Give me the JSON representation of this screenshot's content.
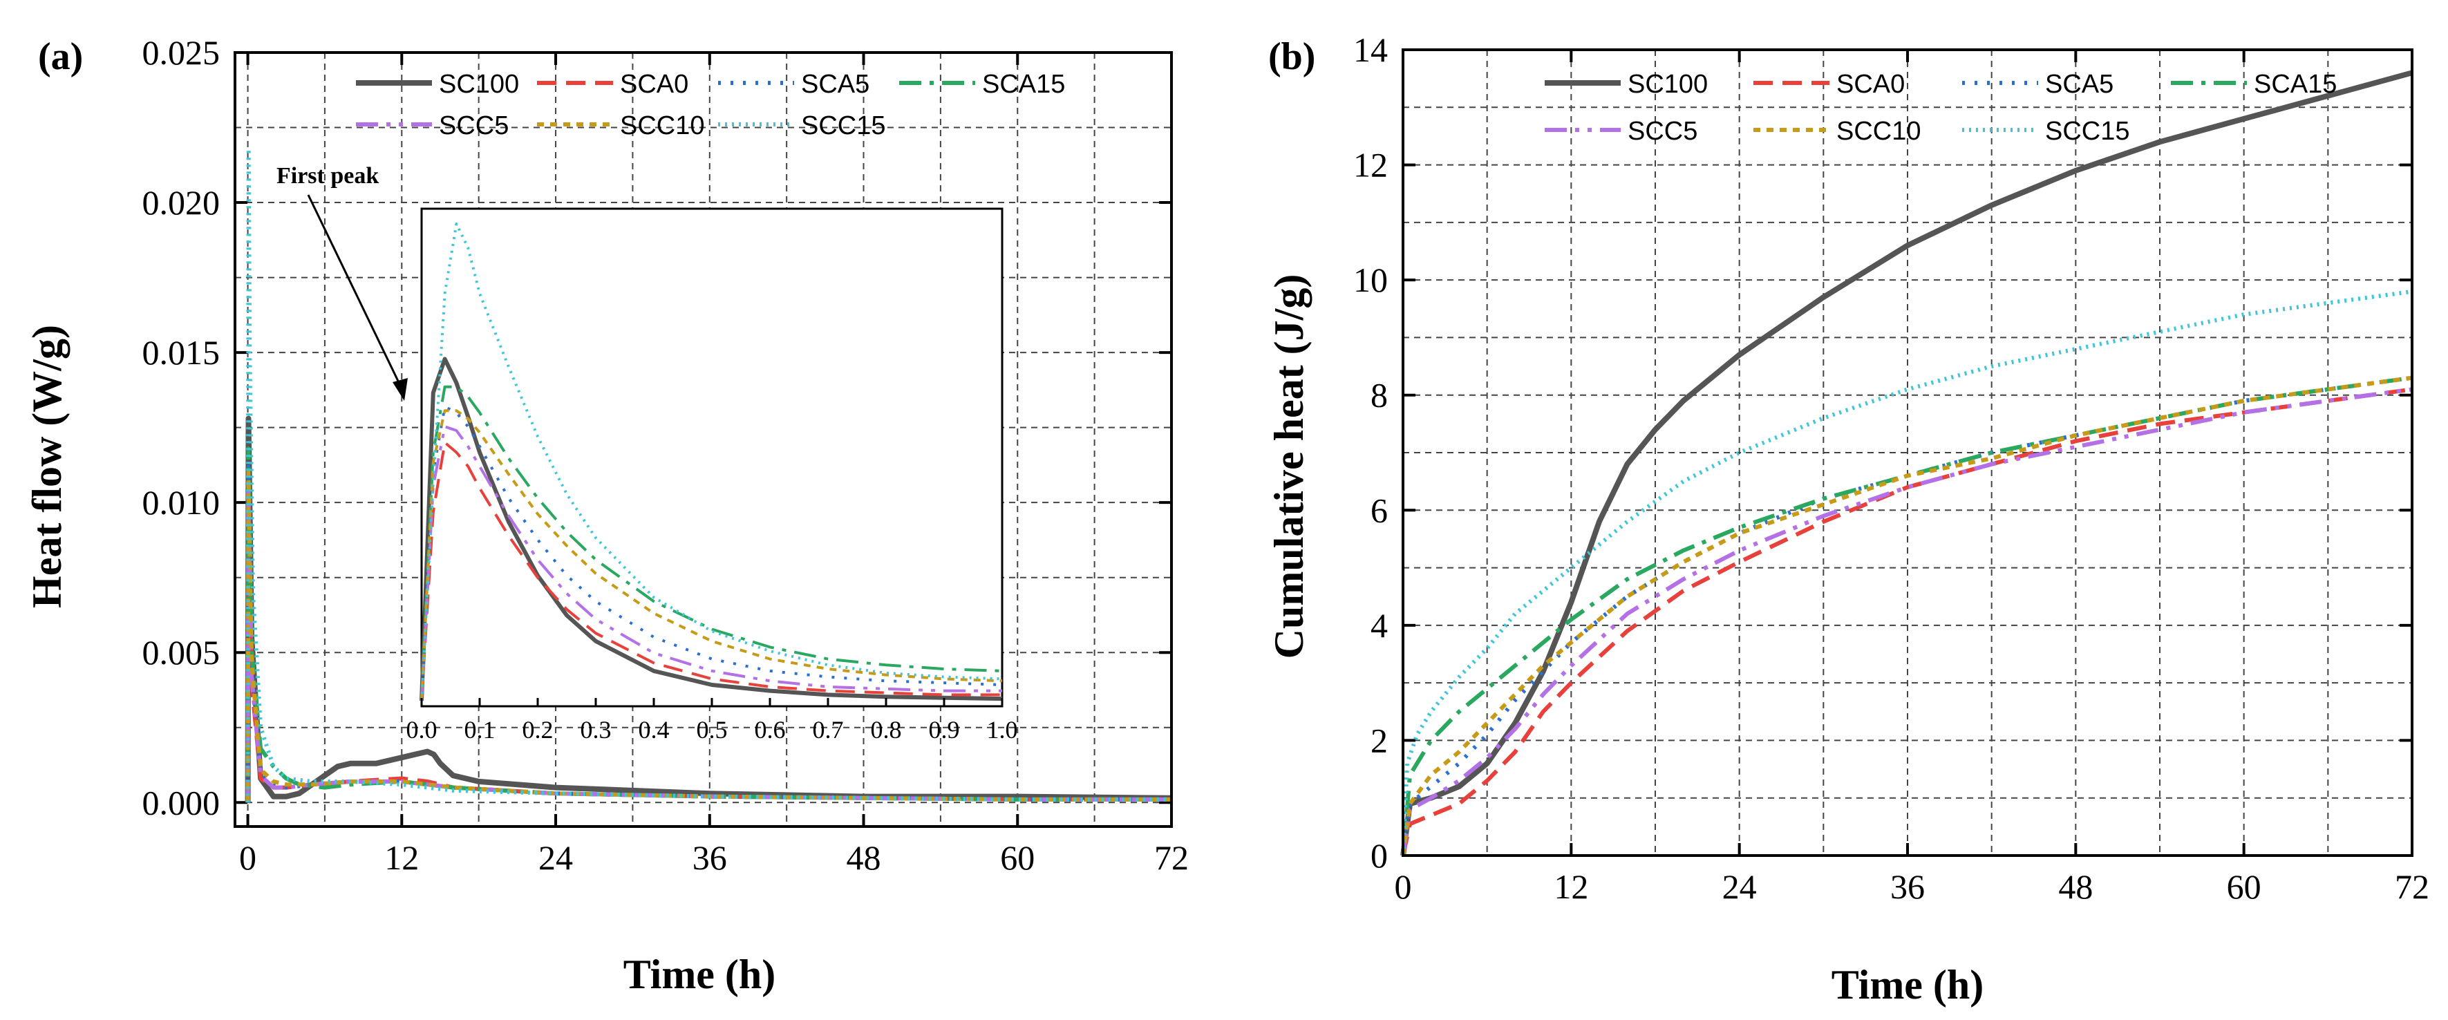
{
  "chart_data": [
    {
      "panel": "(a)",
      "type": "line",
      "xlabel": "Time (h)",
      "ylabel": "Heat flow (W/g)",
      "xlim": [
        -1,
        72
      ],
      "ylim": [
        -0.0008,
        0.025
      ],
      "xticks": [
        0,
        12,
        24,
        36,
        48,
        60,
        72
      ],
      "xtick_labels": [
        "0",
        "12",
        "24",
        "36",
        "48",
        "60",
        "72"
      ],
      "yticks": [
        0,
        0.005,
        0.01,
        0.015,
        0.02,
        0.025
      ],
      "ytick_labels": [
        "0.000",
        "0.005",
        "0.010",
        "0.015",
        "0.020",
        "0.025"
      ],
      "grid": true,
      "legend_position": "top",
      "annotation": "First peak",
      "series": [
        {
          "name": "SC100",
          "color": "#555555",
          "dash": "solid",
          "x": [
            0,
            0.05,
            0.3,
            1,
            2,
            3,
            4,
            5,
            6,
            7,
            8,
            10,
            12,
            13,
            14,
            14.5,
            15,
            16,
            18,
            24,
            36,
            48,
            60,
            72
          ],
          "y": [
            0.0,
            0.0128,
            0.0055,
            0.0008,
            0.0002,
            0.0002,
            0.0003,
            0.0006,
            0.0009,
            0.0012,
            0.0013,
            0.0013,
            0.0015,
            0.0016,
            0.0017,
            0.0016,
            0.0013,
            0.0009,
            0.0007,
            0.0005,
            0.0003,
            0.0002,
            0.0002,
            0.00015
          ]
        },
        {
          "name": "SCA0",
          "color": "#e8413c",
          "dash": "28 14",
          "x": [
            0,
            0.04,
            0.3,
            1,
            2,
            3,
            5,
            8,
            12,
            14,
            16,
            24,
            36,
            48,
            60,
            72
          ],
          "y": [
            0.0,
            0.0103,
            0.004,
            0.0008,
            0.0005,
            0.0005,
            0.0006,
            0.0007,
            0.0008,
            0.0007,
            0.0005,
            0.0003,
            0.0002,
            0.00015,
            0.0001,
            0.0001
          ]
        },
        {
          "name": "SCA5",
          "color": "#2a6fd1",
          "dash": "4 14",
          "x": [
            0,
            0.05,
            0.3,
            1,
            2,
            3,
            5,
            8,
            12,
            14,
            16,
            24,
            36,
            48,
            60,
            72
          ],
          "y": [
            0.0,
            0.0112,
            0.0045,
            0.001,
            0.0006,
            0.0005,
            0.0006,
            0.0007,
            0.0007,
            0.0006,
            0.0005,
            0.0003,
            0.0002,
            0.00015,
            0.0001,
            0.0001
          ]
        },
        {
          "name": "SCA15",
          "color": "#2aa860",
          "dash": "32 12 6 12",
          "x": [
            0,
            0.05,
            0.3,
            1,
            2,
            3,
            4,
            6,
            8,
            12,
            14,
            16,
            24,
            36,
            48,
            60,
            72
          ],
          "y": [
            0.0,
            0.0118,
            0.005,
            0.0018,
            0.0012,
            0.0008,
            0.0006,
            0.0005,
            0.0006,
            0.0007,
            0.0006,
            0.0005,
            0.0003,
            0.0002,
            0.00015,
            0.0001,
            0.0001
          ]
        },
        {
          "name": "SCC5",
          "color": "#b470e6",
          "dash": "32 12 6 12 6 12",
          "x": [
            0,
            0.04,
            0.3,
            1,
            2,
            3,
            5,
            8,
            12,
            14,
            16,
            24,
            36,
            48,
            60,
            72
          ],
          "y": [
            0.0,
            0.0105,
            0.0042,
            0.0009,
            0.0005,
            0.0005,
            0.0006,
            0.0007,
            0.0007,
            0.0006,
            0.0005,
            0.0003,
            0.0002,
            0.00015,
            0.0001,
            0.0001
          ]
        },
        {
          "name": "SCC10",
          "color": "#c79a17",
          "dash": "10 9",
          "x": [
            0,
            0.05,
            0.3,
            1,
            2,
            3,
            5,
            8,
            12,
            14,
            16,
            24,
            36,
            48,
            60,
            72
          ],
          "y": [
            0.0,
            0.011,
            0.0047,
            0.0011,
            0.0007,
            0.0006,
            0.0006,
            0.0007,
            0.0007,
            0.0006,
            0.0005,
            0.0003,
            0.0002,
            0.00015,
            0.0001,
            0.0001
          ]
        },
        {
          "name": "SCC15",
          "color": "#3fc6d6",
          "dash": "3 7",
          "x": [
            0,
            0.06,
            0.15,
            0.4,
            1,
            2,
            3,
            5,
            8,
            12,
            14,
            16,
            24,
            36,
            48,
            60,
            72
          ],
          "y": [
            0.0,
            0.0218,
            0.015,
            0.007,
            0.0025,
            0.0012,
            0.0008,
            0.0007,
            0.0007,
            0.0006,
            0.0005,
            0.0004,
            0.0003,
            0.0002,
            0.00015,
            0.0001,
            0.0001
          ]
        }
      ],
      "inset": {
        "xlim": [
          0,
          1
        ],
        "xticks": [
          0,
          0.1,
          0.2,
          0.3,
          0.4,
          0.5,
          0.6,
          0.7,
          0.8,
          0.9,
          1.0
        ],
        "xtick_labels": [
          "0.0",
          "0.1",
          "0.2",
          "0.3",
          "0.4",
          "0.5",
          "0.6",
          "0.7",
          "0.8",
          "0.9",
          "1.0"
        ],
        "ylim": [
          0,
          0.024
        ],
        "x": [
          0,
          0.02,
          0.04,
          0.06,
          0.08,
          0.1,
          0.15,
          0.2,
          0.25,
          0.3,
          0.4,
          0.5,
          0.6,
          0.7,
          0.8,
          0.9,
          1.0
        ],
        "series": [
          {
            "name": "SC100",
            "y": [
              0.0,
              0.0155,
              0.0172,
              0.016,
              0.0143,
              0.0125,
              0.009,
              0.0063,
              0.0043,
              0.003,
              0.0015,
              0.0008,
              0.0005,
              0.0003,
              0.0002,
              0.00015,
              0.0001
            ]
          },
          {
            "name": "SCA0",
            "y": [
              0.0,
              0.0095,
              0.013,
              0.0125,
              0.0118,
              0.0107,
              0.0083,
              0.0062,
              0.0046,
              0.0034,
              0.0019,
              0.0011,
              0.0007,
              0.0005,
              0.0004,
              0.0003,
              0.0003
            ]
          },
          {
            "name": "SCA5",
            "y": [
              0.0,
              0.0115,
              0.0148,
              0.0145,
              0.0138,
              0.0128,
              0.0102,
              0.0081,
              0.0063,
              0.005,
              0.0032,
              0.0021,
              0.0015,
              0.0012,
              0.001,
              0.0009,
              0.0008
            ]
          },
          {
            "name": "SCA15",
            "y": [
              0.0,
              0.0125,
              0.0158,
              0.0158,
              0.0153,
              0.0145,
              0.0122,
              0.0102,
              0.0085,
              0.0071,
              0.005,
              0.0036,
              0.0027,
              0.0021,
              0.0018,
              0.0016,
              0.0015
            ]
          },
          {
            "name": "SCC5",
            "y": [
              0.0,
              0.0108,
              0.0138,
              0.0136,
              0.0128,
              0.0118,
              0.0093,
              0.0071,
              0.0054,
              0.0041,
              0.0024,
              0.0015,
              0.001,
              0.0007,
              0.0006,
              0.0005,
              0.0005
            ]
          },
          {
            "name": "SCC10",
            "y": [
              0.0,
              0.012,
              0.0146,
              0.0146,
              0.0142,
              0.0135,
              0.0114,
              0.0094,
              0.0078,
              0.0064,
              0.0044,
              0.003,
              0.0021,
              0.0016,
              0.0013,
              0.0011,
              0.001
            ]
          },
          {
            "name": "SCC15",
            "y": [
              0.0,
              0.011,
              0.0205,
              0.024,
              0.0228,
              0.0205,
              0.0168,
              0.0133,
              0.0104,
              0.0082,
              0.0052,
              0.0035,
              0.0025,
              0.0018,
              0.0014,
              0.0012,
              0.0011
            ]
          }
        ]
      }
    },
    {
      "panel": "(b)",
      "type": "line",
      "xlabel": "Time (h)",
      "ylabel": "Cumulative heat (J/g)",
      "xlim": [
        0,
        72
      ],
      "ylim": [
        0,
        14
      ],
      "xticks": [
        0,
        12,
        24,
        36,
        48,
        60,
        72
      ],
      "xtick_labels": [
        "0",
        "12",
        "24",
        "36",
        "48",
        "60",
        "72"
      ],
      "yticks": [
        0,
        2,
        4,
        6,
        8,
        10,
        12,
        14
      ],
      "ytick_labels": [
        "0",
        "2",
        "4",
        "6",
        "8",
        "10",
        "12",
        "14"
      ],
      "grid": true,
      "legend_position": "top",
      "series": [
        {
          "name": "SC100",
          "color": "#555555",
          "dash": "solid",
          "x": [
            0,
            0.5,
            2,
            4,
            6,
            8,
            10,
            12,
            13,
            14,
            15,
            16,
            18,
            20,
            24,
            30,
            36,
            42,
            48,
            54,
            60,
            66,
            72
          ],
          "y": [
            0.0,
            0.9,
            1.0,
            1.2,
            1.6,
            2.3,
            3.2,
            4.4,
            5.1,
            5.8,
            6.3,
            6.8,
            7.4,
            7.9,
            8.7,
            9.7,
            10.6,
            11.3,
            11.9,
            12.4,
            12.8,
            13.2,
            13.6
          ]
        },
        {
          "name": "SCA0",
          "color": "#e8413c",
          "dash": "28 14",
          "x": [
            0,
            0.5,
            2,
            4,
            6,
            8,
            10,
            12,
            16,
            20,
            24,
            30,
            36,
            42,
            48,
            54,
            60,
            66,
            72
          ],
          "y": [
            0.0,
            0.55,
            0.7,
            0.9,
            1.3,
            1.8,
            2.5,
            3.0,
            3.9,
            4.6,
            5.1,
            5.8,
            6.4,
            6.8,
            7.2,
            7.5,
            7.7,
            7.9,
            8.1
          ]
        },
        {
          "name": "SCA5",
          "color": "#2a6fd1",
          "dash": "4 14",
          "x": [
            0,
            0.5,
            2,
            4,
            6,
            8,
            10,
            12,
            16,
            20,
            24,
            30,
            36,
            42,
            48,
            54,
            60,
            66,
            72
          ],
          "y": [
            0.0,
            0.9,
            1.2,
            1.6,
            2.1,
            2.7,
            3.2,
            3.7,
            4.5,
            5.1,
            5.6,
            6.2,
            6.6,
            7.0,
            7.3,
            7.6,
            7.9,
            8.1,
            8.3
          ]
        },
        {
          "name": "SCA15",
          "color": "#2aa860",
          "dash": "32 12 6 12",
          "x": [
            0,
            0.5,
            2,
            4,
            6,
            8,
            10,
            12,
            16,
            20,
            24,
            30,
            36,
            42,
            48,
            54,
            60,
            66,
            72
          ],
          "y": [
            0.0,
            1.4,
            2.0,
            2.5,
            2.9,
            3.3,
            3.7,
            4.1,
            4.8,
            5.3,
            5.7,
            6.2,
            6.6,
            7.0,
            7.3,
            7.6,
            7.9,
            8.1,
            8.3
          ]
        },
        {
          "name": "SCC5",
          "color": "#b470e6",
          "dash": "32 12 6 12 6 12",
          "x": [
            0,
            0.5,
            2,
            4,
            6,
            8,
            10,
            12,
            16,
            20,
            24,
            30,
            36,
            42,
            48,
            54,
            60,
            66,
            72
          ],
          "y": [
            0.0,
            0.8,
            1.0,
            1.3,
            1.7,
            2.2,
            2.8,
            3.3,
            4.2,
            4.8,
            5.3,
            5.9,
            6.4,
            6.8,
            7.1,
            7.4,
            7.7,
            7.9,
            8.1
          ]
        },
        {
          "name": "SCC10",
          "color": "#c79a17",
          "dash": "10 9",
          "x": [
            0,
            0.5,
            2,
            4,
            6,
            8,
            10,
            12,
            16,
            20,
            24,
            30,
            36,
            42,
            48,
            54,
            60,
            66,
            72
          ],
          "y": [
            0.0,
            0.9,
            1.4,
            1.8,
            2.3,
            2.8,
            3.3,
            3.7,
            4.5,
            5.1,
            5.6,
            6.1,
            6.6,
            6.9,
            7.3,
            7.6,
            7.9,
            8.1,
            8.3
          ]
        },
        {
          "name": "SCC15",
          "color": "#3fc6d6",
          "dash": "3 7",
          "x": [
            0,
            0.3,
            1,
            2,
            4,
            6,
            8,
            10,
            12,
            16,
            20,
            24,
            30,
            36,
            42,
            48,
            54,
            60,
            66,
            72
          ],
          "y": [
            0.0,
            1.6,
            2.1,
            2.5,
            3.1,
            3.6,
            4.2,
            4.6,
            5.0,
            5.8,
            6.5,
            7.0,
            7.6,
            8.1,
            8.5,
            8.8,
            9.1,
            9.4,
            9.6,
            9.8
          ]
        }
      ]
    }
  ]
}
